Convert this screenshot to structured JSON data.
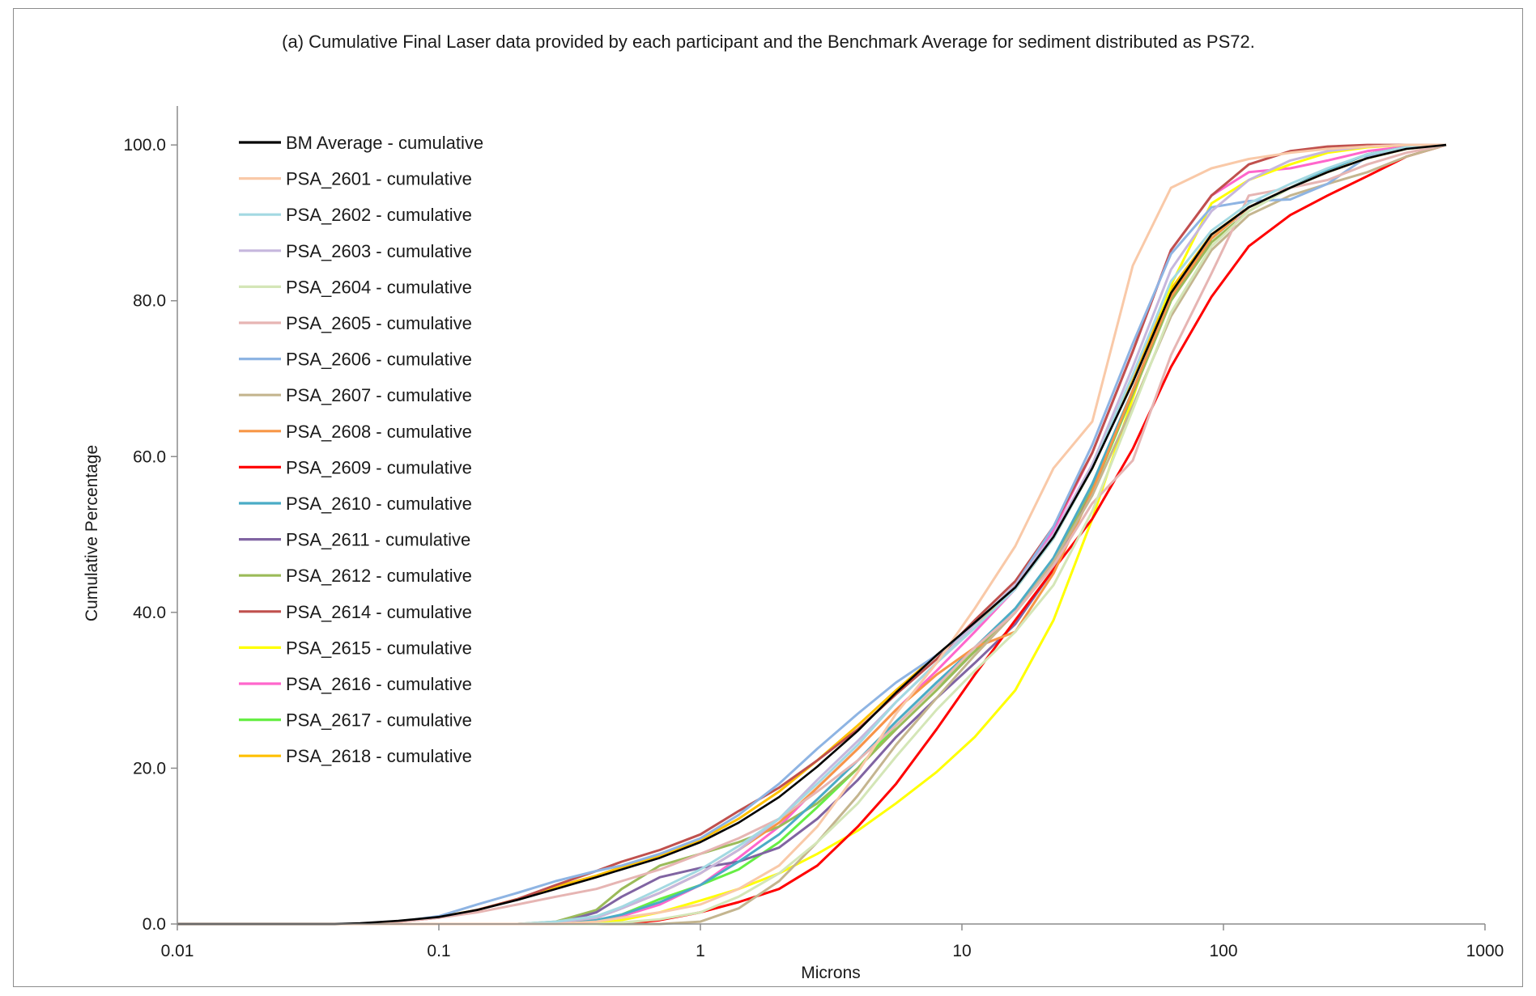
{
  "chart_data": {
    "type": "line",
    "title": "(a) Cumulative Final Laser data provided by each participant and the Benchmark Average for sediment distributed as PS72.",
    "xlabel": "Microns",
    "ylabel": "Cumulative Percentage",
    "x_scale": "log",
    "xlim": [
      0.01,
      1000
    ],
    "ylim": [
      0,
      105
    ],
    "x_ticks": [
      "0.01",
      "0.1",
      "1",
      "10",
      "100",
      "1000"
    ],
    "y_ticks": [
      "0.0",
      "20.0",
      "40.0",
      "60.0",
      "80.0",
      "100.0"
    ],
    "grid": false,
    "legend_position": "top-left",
    "x": [
      0.01,
      0.02,
      0.04,
      0.05,
      0.07,
      0.1,
      0.14,
      0.2,
      0.28,
      0.4,
      0.5,
      0.7,
      1.0,
      1.4,
      2.0,
      2.8,
      4.0,
      5.6,
      8.0,
      11.2,
      16.0,
      22.4,
      31.5,
      45.0,
      63.0,
      90.0,
      125.0,
      180.0,
      250.0,
      355.0,
      500.0,
      710.0
    ],
    "series": [
      {
        "name": "BM Average - cumulative",
        "color": "#000000",
        "values": [
          0,
          0,
          0,
          0.1,
          0.4,
          0.9,
          1.8,
          3.1,
          4.5,
          6.0,
          7.0,
          8.5,
          10.5,
          13.0,
          16.3,
          20.2,
          24.8,
          29.7,
          34.5,
          38.7,
          43.2,
          49.7,
          58.5,
          69.5,
          81.0,
          88.5,
          92.0,
          94.5,
          96.5,
          98.3,
          99.5,
          100
        ]
      },
      {
        "name": "PSA_2601 - cumulative",
        "color": "#f9c9a8",
        "values": [
          0,
          0,
          0,
          0,
          0,
          0,
          0,
          0,
          0,
          0.3,
          0.8,
          1.5,
          2.5,
          4.5,
          7.5,
          12.5,
          19.5,
          27.0,
          33.5,
          40.5,
          48.5,
          58.5,
          64.5,
          84.5,
          94.5,
          97.0,
          98.2,
          99.0,
          99.5,
          99.8,
          100,
          100
        ]
      },
      {
        "name": "PSA_2602 - cumulative",
        "color": "#a3d9e2",
        "values": [
          0,
          0,
          0,
          0,
          0,
          0,
          0,
          0,
          0.3,
          1.0,
          2.2,
          4.5,
          7.0,
          10.0,
          13.5,
          18.0,
          23.0,
          28.5,
          33.5,
          38.0,
          43.0,
          49.5,
          58.5,
          70.5,
          82.5,
          89.0,
          92.5,
          95.0,
          97.0,
          98.8,
          99.7,
          100
        ]
      },
      {
        "name": "PSA_2603 - cumulative",
        "color": "#c6b7dd",
        "values": [
          0,
          0,
          0,
          0,
          0,
          0,
          0,
          0,
          0.2,
          0.8,
          2.0,
          4.0,
          6.5,
          9.5,
          13.5,
          18.5,
          23.5,
          28.5,
          33.5,
          38.5,
          43.5,
          50.0,
          59.0,
          71.5,
          84.0,
          91.5,
          95.5,
          98.0,
          99.2,
          99.8,
          100,
          100
        ]
      },
      {
        "name": "PSA_2604 - cumulative",
        "color": "#d4e6b7",
        "values": [
          0,
          0,
          0,
          0,
          0,
          0,
          0,
          0,
          0,
          0,
          0.2,
          0.6,
          1.5,
          3.5,
          6.5,
          10.5,
          15.5,
          21.5,
          27.5,
          32.5,
          37.5,
          43.5,
          53.0,
          66.0,
          78.5,
          87.0,
          91.5,
          94.5,
          96.5,
          98.3,
          99.5,
          100
        ]
      },
      {
        "name": "PSA_2605 - cumulative",
        "color": "#e6b5b3",
        "values": [
          0,
          0,
          0,
          0,
          0.3,
          0.8,
          1.5,
          2.5,
          3.5,
          4.5,
          5.5,
          7.0,
          9.0,
          11.0,
          13.5,
          17.0,
          21.0,
          25.5,
          30.5,
          35.5,
          40.0,
          46.0,
          54.0,
          59.5,
          73.0,
          83.5,
          93.5,
          94.5,
          95.5,
          97.5,
          99.0,
          100
        ]
      },
      {
        "name": "PSA_2606 - cumulative",
        "color": "#8eb4e3",
        "values": [
          0,
          0,
          0,
          0,
          0.3,
          1.0,
          2.5,
          4.0,
          5.5,
          6.8,
          7.5,
          9.0,
          11.0,
          14.0,
          18.0,
          22.5,
          27.0,
          31.0,
          34.5,
          38.5,
          43.5,
          51.0,
          61.5,
          74.5,
          86.0,
          92.0,
          92.8,
          93.0,
          95.0,
          98.5,
          99.7,
          100
        ]
      },
      {
        "name": "PSA_2607 - cumulative",
        "color": "#c4b58f",
        "values": [
          0,
          0,
          0,
          0,
          0,
          0,
          0,
          0,
          0,
          0,
          0,
          0,
          0.3,
          2.0,
          5.5,
          10.5,
          16.5,
          23.0,
          29.0,
          34.5,
          40.0,
          46.5,
          55.0,
          66.5,
          78.0,
          86.5,
          91.0,
          93.5,
          95.0,
          96.5,
          98.5,
          100
        ]
      },
      {
        "name": "PSA_2608 - cumulative",
        "color": "#f79646",
        "values": [
          0,
          0,
          0,
          0,
          0,
          0,
          0,
          0,
          0.2,
          0.8,
          2.0,
          4.0,
          6.5,
          9.5,
          13.0,
          17.5,
          22.5,
          27.5,
          32.0,
          35.5,
          37.5,
          45.0,
          55.5,
          68.5,
          80.5,
          88.0,
          92.0,
          94.5,
          96.5,
          98.3,
          99.5,
          100
        ]
      },
      {
        "name": "PSA_2609 - cumulative",
        "color": "#ff0000",
        "values": [
          0,
          0,
          0,
          0,
          0,
          0,
          0,
          0,
          0,
          0,
          0,
          0.5,
          1.5,
          2.8,
          4.5,
          7.5,
          12.5,
          18.0,
          25.0,
          32.0,
          39.0,
          45.5,
          52.0,
          61.0,
          71.5,
          80.5,
          87.0,
          91.0,
          93.5,
          96.0,
          98.5,
          100
        ]
      },
      {
        "name": "PSA_2610 - cumulative",
        "color": "#4bacc6",
        "values": [
          0,
          0,
          0,
          0,
          0,
          0,
          0,
          0,
          0.2,
          0.5,
          1.2,
          2.8,
          5.0,
          8.0,
          11.5,
          16.0,
          21.0,
          26.0,
          31.0,
          35.5,
          40.5,
          47.0,
          56.5,
          68.5,
          80.5,
          88.0,
          92.0,
          94.5,
          96.8,
          98.8,
          99.7,
          100
        ]
      },
      {
        "name": "PSA_2611 - cumulative",
        "color": "#8064a2",
        "values": [
          0,
          0,
          0,
          0,
          0,
          0,
          0,
          0,
          0,
          1.5,
          3.5,
          6.0,
          7.2,
          8.0,
          9.8,
          13.5,
          18.5,
          24.0,
          29.0,
          33.5,
          38.5,
          45.5,
          55.5,
          68.5,
          80.5,
          88.0,
          92.0,
          94.5,
          96.8,
          98.8,
          99.7,
          100
        ]
      },
      {
        "name": "PSA_2612 - cumulative",
        "color": "#9bbb59",
        "values": [
          0,
          0,
          0,
          0,
          0,
          0,
          0,
          0,
          0.3,
          1.8,
          4.5,
          7.5,
          9.0,
          10.5,
          12.5,
          15.5,
          20.0,
          25.0,
          30.0,
          35.0,
          40.0,
          46.5,
          56.0,
          68.0,
          80.0,
          87.5,
          91.5,
          94.5,
          96.8,
          98.8,
          99.7,
          100
        ]
      },
      {
        "name": "PSA_2614 - cumulative",
        "color": "#c0504d",
        "values": [
          0,
          0,
          0,
          0,
          0.3,
          0.8,
          1.8,
          3.2,
          5.0,
          6.8,
          8.0,
          9.5,
          11.5,
          14.5,
          17.5,
          21.0,
          25.0,
          29.5,
          34.0,
          39.0,
          44.0,
          51.0,
          60.5,
          73.5,
          86.5,
          93.5,
          97.5,
          99.2,
          99.8,
          100,
          100,
          100
        ]
      },
      {
        "name": "PSA_2615 - cumulative",
        "color": "#ffff00",
        "values": [
          0,
          0,
          0,
          0,
          0,
          0,
          0,
          0,
          0,
          0,
          0.5,
          1.5,
          3.0,
          4.5,
          6.5,
          9.0,
          12.0,
          15.5,
          19.5,
          24.0,
          30.0,
          39.0,
          52.0,
          67.5,
          82.0,
          92.5,
          95.5,
          97.5,
          99.0,
          99.7,
          100,
          100
        ]
      },
      {
        "name": "PSA_2616 - cumulative",
        "color": "#ff66cc",
        "values": [
          0,
          0,
          0,
          0,
          0,
          0,
          0,
          0,
          0,
          0.3,
          1.0,
          2.5,
          5.0,
          8.5,
          12.5,
          17.5,
          22.5,
          27.5,
          32.5,
          37.5,
          43.0,
          50.5,
          60.5,
          73.5,
          86.5,
          93.5,
          96.5,
          97.0,
          98.0,
          99.2,
          99.8,
          100
        ]
      },
      {
        "name": "PSA_2617 - cumulative",
        "color": "#66ee44",
        "values": [
          0,
          0,
          0,
          0,
          0,
          0,
          0,
          0,
          0,
          0.3,
          1.2,
          3.2,
          5.0,
          7.0,
          10.5,
          15.0,
          20.0,
          25.5,
          30.5,
          35.0,
          40.0,
          46.0,
          55.5,
          68.0,
          80.0,
          88.0,
          92.0,
          94.5,
          96.8,
          98.8,
          99.7,
          100
        ]
      },
      {
        "name": "PSA_2618 - cumulative",
        "color": "#ffc000",
        "values": [
          0,
          0,
          0,
          0,
          0.3,
          0.9,
          1.8,
          3.2,
          4.8,
          6.2,
          7.3,
          8.8,
          10.8,
          13.5,
          17.0,
          21.0,
          25.5,
          30.0,
          34.5,
          38.5,
          43.0,
          49.5,
          58.5,
          70.0,
          81.5,
          88.5,
          92.0,
          94.5,
          96.5,
          98.3,
          99.5,
          100
        ]
      }
    ]
  }
}
